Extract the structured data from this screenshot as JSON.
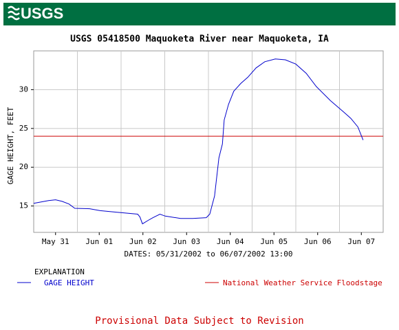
{
  "chart_data": {
    "type": "line",
    "logo": "USGS",
    "title": "USGS 05418500 Maquoketa River near Maquoketa, IA",
    "y_label": "GAGE HEIGHT, FEET",
    "x_label": "DATES: 05/31/2002 to 06/07/2002 13:00",
    "legend_title": "EXPLANATION",
    "footer": "Provisional Data Subject to Revision",
    "grid": true,
    "xlim": [
      0,
      8
    ],
    "xticks": [
      {
        "value": 0.5,
        "label": "May 31"
      },
      {
        "value": 1.5,
        "label": "Jun 01"
      },
      {
        "value": 2.5,
        "label": "Jun 02"
      },
      {
        "value": 3.5,
        "label": "Jun 03"
      },
      {
        "value": 4.5,
        "label": "Jun 04"
      },
      {
        "value": 5.5,
        "label": "Jun 05"
      },
      {
        "value": 6.5,
        "label": "Jun 06"
      },
      {
        "value": 7.5,
        "label": "Jun 07"
      }
    ],
    "ylim": [
      11.6,
      35.0
    ],
    "yticks": [
      15,
      20,
      25,
      30
    ],
    "x": [
      0.0,
      0.34,
      0.5,
      0.65,
      0.81,
      0.94,
      1.28,
      1.52,
      1.91,
      2.38,
      2.43,
      2.49,
      2.62,
      2.73,
      2.89,
      3.01,
      3.36,
      3.64,
      3.95,
      4.03,
      4.14,
      4.24,
      4.32,
      4.36,
      4.46,
      4.58,
      4.74,
      4.9,
      5.09,
      5.29,
      5.53,
      5.76,
      6.0,
      6.24,
      6.47,
      6.79,
      7.1,
      7.26,
      7.42,
      7.54
    ],
    "series": [
      {
        "name": "GAGE HEIGHT",
        "color": "#0000cc",
        "values": [
          15.35,
          15.7,
          15.8,
          15.6,
          15.25,
          14.7,
          14.65,
          14.4,
          14.2,
          13.95,
          13.6,
          12.7,
          13.15,
          13.5,
          13.95,
          13.7,
          13.4,
          13.4,
          13.5,
          13.95,
          16.3,
          21.2,
          23.0,
          26.1,
          28.1,
          29.8,
          30.8,
          31.6,
          32.8,
          33.6,
          33.95,
          33.85,
          33.3,
          32.1,
          30.4,
          28.6,
          27.1,
          26.3,
          25.2,
          23.5
        ]
      }
    ],
    "floodstage": {
      "name": "National Weather Service Floodstage",
      "value": 24,
      "color": "#cc0000"
    }
  }
}
